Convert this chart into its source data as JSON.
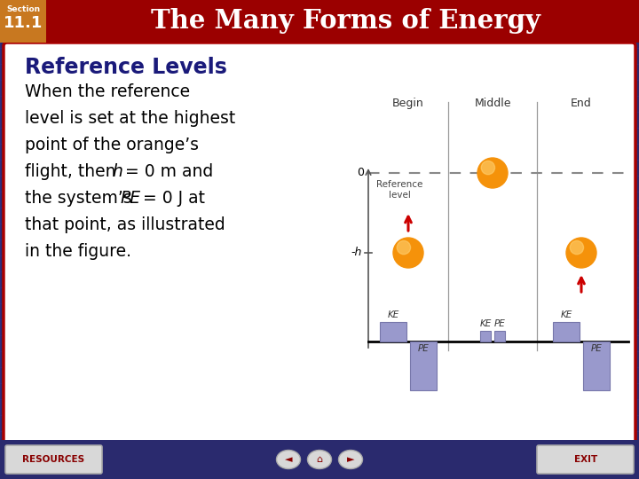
{
  "bg_color": "#2a2a6e",
  "header_bg": "#9b0000",
  "header_section_bg": "#c87820",
  "header_title": "The Many Forms of Energy",
  "content_bg": "#ffffff",
  "content_border": "#aa0000",
  "subtitle": "Reference Levels",
  "subtitle_color": "#1a1a7a",
  "footer_bg": "#2a2a6e",
  "resources_text": "RESOURCES",
  "exit_text": "EXIT",
  "diagram": {
    "col_labels": [
      "Begin",
      "Middle",
      "End"
    ],
    "ref_label": "Reference\nlevel",
    "minus_h_label": "-h",
    "zero_label": "0",
    "orange_color": "#f5920a",
    "orange_highlight": "#ffd070",
    "arrow_color": "#cc0000",
    "bar_color": "#9999cc",
    "bar_outline": "#7777aa",
    "axis_color": "#555555",
    "divider_color": "#999999",
    "dash_color": "#888888"
  }
}
